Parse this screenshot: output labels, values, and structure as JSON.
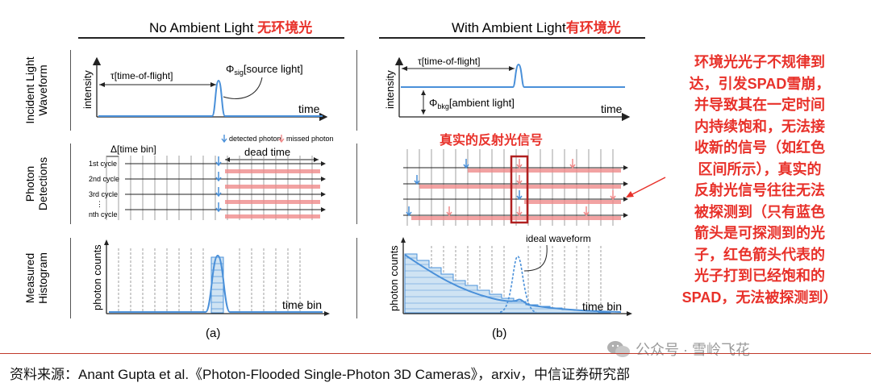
{
  "panel_a": {
    "title_en": "No Ambient Light ",
    "title_cn": "无环境光",
    "tof_label": "τ[time-of-flight]",
    "phi_label": "Φ",
    "phi_sub": "sig",
    "phi_suffix": "[source light]",
    "intensity_label": "intensity",
    "time_label": "time",
    "detected_legend": "detected photon",
    "missed_legend": "missed photon",
    "bin_label": "Δ[time bin]",
    "dead_time_label": "dead time",
    "cycle_labels": [
      "1st cycle",
      "2nd cycle",
      "3rd cycle",
      "⋮",
      "nth cycle"
    ],
    "photon_counts_label": "photon counts",
    "time_bin_label": "time bin",
    "caption": "(a)"
  },
  "panel_b": {
    "title_en": "With Ambient Light",
    "title_cn": "有环境光",
    "tof_label": "τ[time-of-flight]",
    "phi_label": "Φ",
    "phi_sub": "bkg",
    "phi_suffix": "[ambient light]",
    "intensity_label": "intensity",
    "time_label": "time",
    "signal_label_cn": "真实的反射光信号",
    "ideal_waveform_label": "ideal waveform",
    "photon_counts_label": "photon counts",
    "time_bin_label": "time bin",
    "caption": "(b)"
  },
  "row_labels": {
    "row1": [
      "Incident Light",
      "Waveform"
    ],
    "row2": [
      "Photon",
      "Detections"
    ],
    "row3": [
      "Measured",
      "Histogram"
    ]
  },
  "annotation_cn": [
    "环境光光子不规律到",
    "达，引发SPAD雪崩，",
    "并导致其在一定时间",
    "内持续饱和，无法接",
    "收新的信号（如红色",
    "区间所示），真实的",
    "反射光信号往往无法",
    "被探测到（只有蓝色",
    "箭头是可探测到的光",
    "子，红色箭头代表的",
    "光子打到已经饱和的",
    "SPAD，无法被探测到）"
  ],
  "watermark": "公众号 · 雪岭飞花",
  "source": "资料来源：Anant Gupta et al.《Photon-Flooded Single-Photon 3D Cameras》，arxiv，中信证券研究部",
  "colors": {
    "blue": "#4a90d9",
    "red": "#e8312a",
    "pink": "#f08b8b",
    "dark_red": "#b02020",
    "hist_fill": "#cfe3f3"
  }
}
